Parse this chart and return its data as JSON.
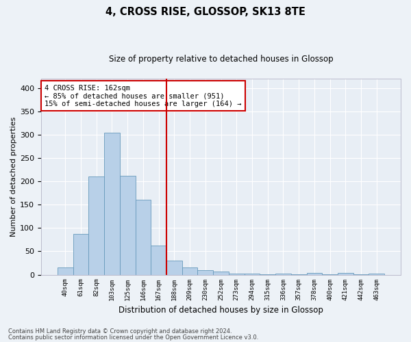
{
  "title": "4, CROSS RISE, GLOSSOP, SK13 8TE",
  "subtitle": "Size of property relative to detached houses in Glossop",
  "xlabel": "Distribution of detached houses by size in Glossop",
  "ylabel": "Number of detached properties",
  "bar_labels": [
    "40sqm",
    "61sqm",
    "82sqm",
    "103sqm",
    "125sqm",
    "146sqm",
    "167sqm",
    "188sqm",
    "209sqm",
    "230sqm",
    "252sqm",
    "273sqm",
    "294sqm",
    "315sqm",
    "336sqm",
    "357sqm",
    "378sqm",
    "400sqm",
    "421sqm",
    "442sqm",
    "463sqm"
  ],
  "bar_values": [
    15,
    88,
    210,
    304,
    212,
    160,
    63,
    30,
    16,
    10,
    6,
    3,
    2,
    1,
    3,
    1,
    4,
    1,
    4,
    1,
    3
  ],
  "bar_color": "#b8d0e8",
  "bar_edge_color": "#6699bb",
  "vline_x": 6.5,
  "vline_color": "#cc0000",
  "annotation_text": "4 CROSS RISE: 162sqm\n← 85% of detached houses are smaller (951)\n15% of semi-detached houses are larger (164) →",
  "annotation_box_color": "#ffffff",
  "annotation_box_edge": "#cc0000",
  "ylim": [
    0,
    420
  ],
  "yticks": [
    0,
    50,
    100,
    150,
    200,
    250,
    300,
    350,
    400
  ],
  "background_color": "#e8eef5",
  "grid_color": "#ffffff",
  "fig_bg_color": "#edf2f7",
  "footer1": "Contains HM Land Registry data © Crown copyright and database right 2024.",
  "footer2": "Contains public sector information licensed under the Open Government Licence v3.0."
}
